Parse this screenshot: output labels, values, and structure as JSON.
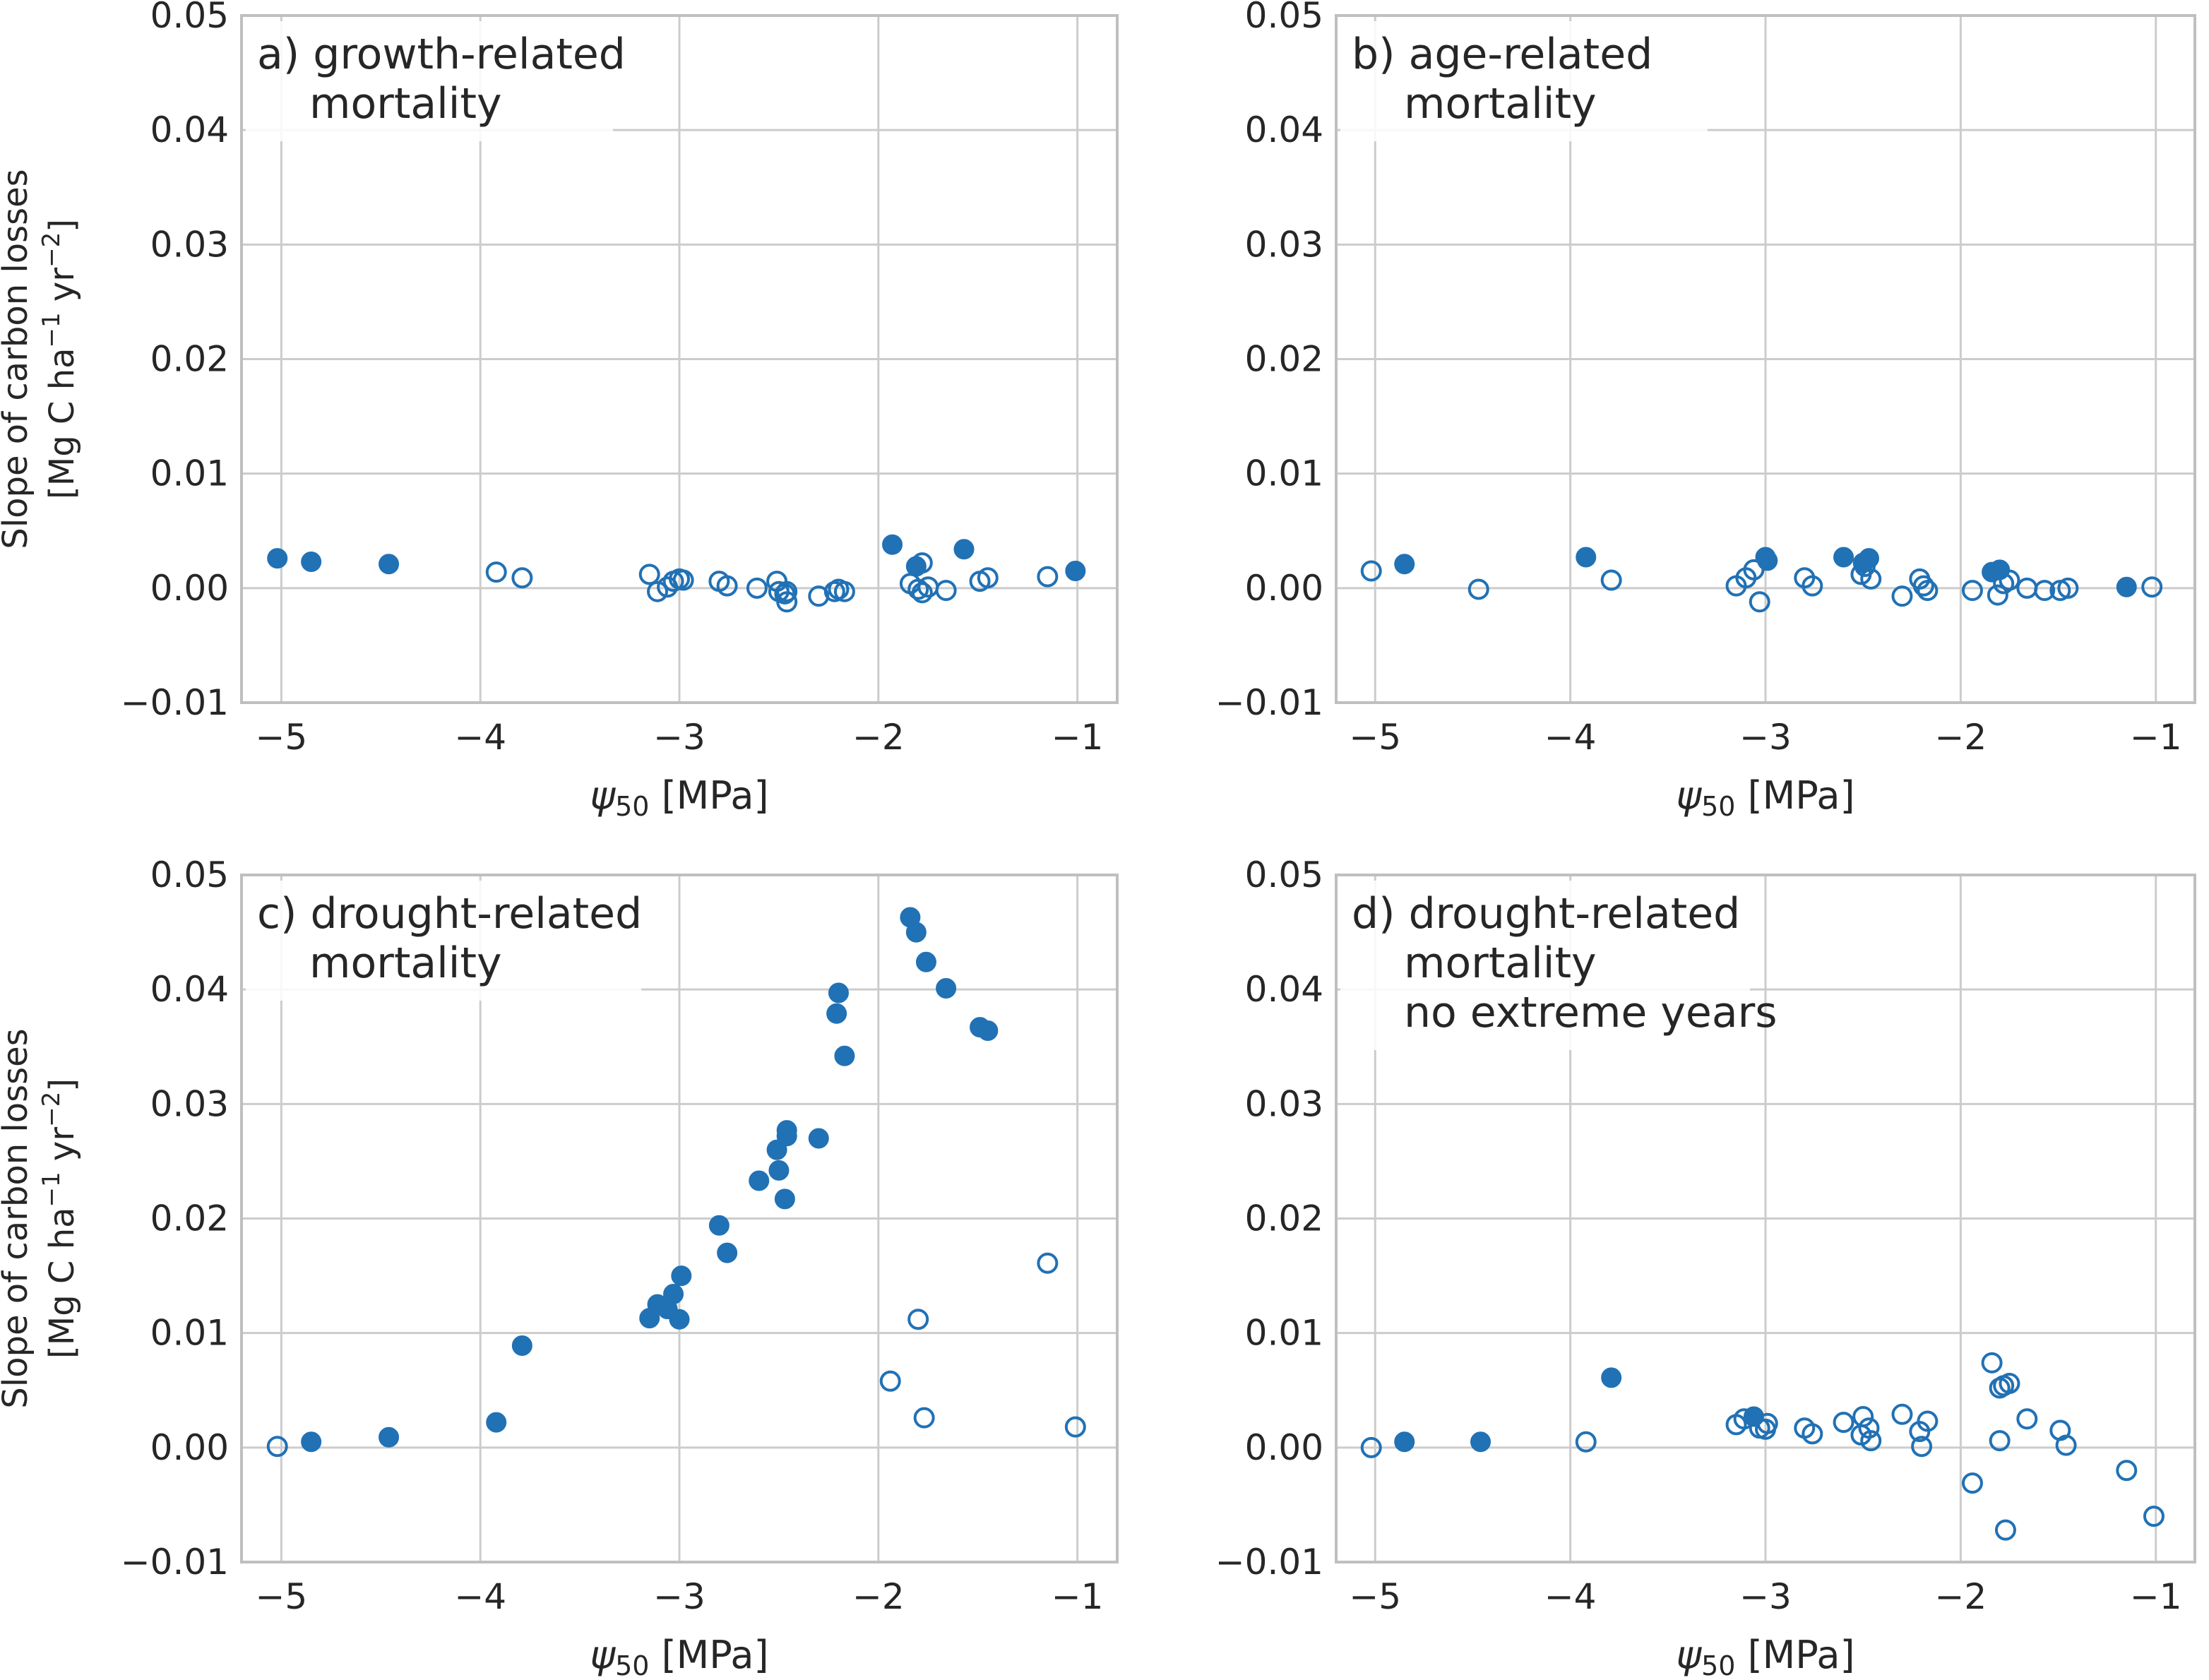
{
  "style": {
    "marker_color": "#2171b5",
    "grid_color": "#cccccc",
    "frame_color": "#bfbfbf",
    "text_color": "#262626"
  },
  "chart_data": [
    {
      "type": "scatter",
      "panel": "a",
      "label_lines": [
        "a) growth-related",
        "mortality"
      ],
      "xlabel": "ψ50 [MPa]",
      "ylabel_lines": [
        "Slope of carbon losses",
        "[Mg C ha−1 yr−2]"
      ],
      "xlim": [
        -5.2,
        -0.8
      ],
      "ylim": [
        -0.01,
        0.05
      ],
      "xticks": [
        -5,
        -4,
        -3,
        -2,
        -1
      ],
      "xtick_labels": [
        "−5",
        "−4",
        "−3",
        "−2",
        "−1"
      ],
      "yticks": [
        -0.01,
        0.0,
        0.01,
        0.02,
        0.03,
        0.04,
        0.05
      ],
      "ytick_labels": [
        "−0.01",
        "0.00",
        "0.01",
        "0.02",
        "0.03",
        "0.04",
        "0.05"
      ],
      "grid": true,
      "series": [
        {
          "filled": true,
          "points": [
            [
              -5.02,
              0.0026
            ],
            [
              -4.85,
              0.0023
            ],
            [
              -4.46,
              0.0021
            ],
            [
              -1.93,
              0.0038
            ],
            [
              -1.81,
              0.0019
            ],
            [
              -1.57,
              0.0034
            ],
            [
              -1.01,
              0.0015
            ]
          ]
        },
        {
          "filled": false,
          "points": [
            [
              -3.92,
              0.0014
            ],
            [
              -3.79,
              0.0009
            ],
            [
              -3.15,
              0.0012
            ],
            [
              -3.11,
              -0.0003
            ],
            [
              -3.06,
              0.0001
            ],
            [
              -3.03,
              0.0006
            ],
            [
              -3.0,
              0.0008
            ],
            [
              -2.98,
              0.0007
            ],
            [
              -2.8,
              0.0006
            ],
            [
              -2.76,
              0.0002
            ],
            [
              -2.61,
              0.0
            ],
            [
              -2.51,
              0.0006
            ],
            [
              -2.5,
              -0.0003
            ],
            [
              -2.47,
              -0.0005
            ],
            [
              -2.46,
              -0.0003
            ],
            [
              -2.46,
              -0.0012
            ],
            [
              -2.3,
              -0.0007
            ],
            [
              -2.22,
              -0.0003
            ],
            [
              -2.2,
              -0.0001
            ],
            [
              -2.17,
              -0.0003
            ],
            [
              -1.84,
              0.0004
            ],
            [
              -1.8,
              -0.0001
            ],
            [
              -1.78,
              0.0022
            ],
            [
              -1.78,
              -0.0004
            ],
            [
              -1.75,
              0.0001
            ],
            [
              -1.66,
              -0.0002
            ],
            [
              -1.49,
              0.0006
            ],
            [
              -1.45,
              0.0009
            ],
            [
              -1.15,
              0.001
            ]
          ]
        }
      ]
    },
    {
      "type": "scatter",
      "panel": "b",
      "label_lines": [
        "b) age-related",
        "mortality"
      ],
      "xlabel": "ψ50 [MPa]",
      "ylabel_lines": [],
      "xlim": [
        -5.2,
        -0.8
      ],
      "ylim": [
        -0.01,
        0.05
      ],
      "xticks": [
        -5,
        -4,
        -3,
        -2,
        -1
      ],
      "xtick_labels": [
        "−5",
        "−4",
        "−3",
        "−2",
        "−1"
      ],
      "yticks": [
        -0.01,
        0.0,
        0.01,
        0.02,
        0.03,
        0.04,
        0.05
      ],
      "ytick_labels": [
        "−0.01",
        "0.00",
        "0.01",
        "0.02",
        "0.03",
        "0.04",
        "0.05"
      ],
      "grid": true,
      "series": [
        {
          "filled": true,
          "points": [
            [
              -4.85,
              0.0021
            ],
            [
              -3.92,
              0.0027
            ],
            [
              -3.0,
              0.0027
            ],
            [
              -2.99,
              0.0024
            ],
            [
              -2.6,
              0.0027
            ],
            [
              -2.5,
              0.0022
            ],
            [
              -2.47,
              0.0026
            ],
            [
              -1.84,
              0.0014
            ],
            [
              -1.8,
              0.0016
            ],
            [
              -1.15,
              0.0001
            ]
          ]
        },
        {
          "filled": false,
          "points": [
            [
              -5.02,
              0.0015
            ],
            [
              -4.47,
              -0.0001
            ],
            [
              -3.79,
              0.0007
            ],
            [
              -3.15,
              0.0002
            ],
            [
              -3.1,
              0.0009
            ],
            [
              -3.06,
              0.0016
            ],
            [
              -3.03,
              -0.0012
            ],
            [
              -2.8,
              0.0009
            ],
            [
              -2.76,
              0.0002
            ],
            [
              -2.51,
              0.0012
            ],
            [
              -2.49,
              0.0019
            ],
            [
              -2.46,
              0.0008
            ],
            [
              -2.3,
              -0.0007
            ],
            [
              -2.21,
              0.0008
            ],
            [
              -2.19,
              0.0002
            ],
            [
              -2.17,
              -0.0002
            ],
            [
              -1.94,
              -0.0002
            ],
            [
              -1.81,
              -0.0006
            ],
            [
              -1.78,
              0.0004
            ],
            [
              -1.75,
              0.0007
            ],
            [
              -1.66,
              0.0
            ],
            [
              -1.57,
              -0.0002
            ],
            [
              -1.49,
              -0.0002
            ],
            [
              -1.45,
              0.0
            ],
            [
              -1.02,
              0.0001
            ]
          ]
        }
      ]
    },
    {
      "type": "scatter",
      "panel": "c",
      "label_lines": [
        "c) drought-related",
        "mortality"
      ],
      "xlabel": "ψ50 [MPa]",
      "ylabel_lines": [
        "Slope of carbon losses",
        "[Mg C ha−1 yr−2]"
      ],
      "xlim": [
        -5.2,
        -0.8
      ],
      "ylim": [
        -0.01,
        0.05
      ],
      "xticks": [
        -5,
        -4,
        -3,
        -2,
        -1
      ],
      "xtick_labels": [
        "−5",
        "−4",
        "−3",
        "−2",
        "−1"
      ],
      "yticks": [
        -0.01,
        0.0,
        0.01,
        0.02,
        0.03,
        0.04,
        0.05
      ],
      "ytick_labels": [
        "−0.01",
        "0.00",
        "0.01",
        "0.02",
        "0.03",
        "0.04",
        "0.05"
      ],
      "grid": true,
      "series": [
        {
          "filled": true,
          "points": [
            [
              -4.85,
              0.0005
            ],
            [
              -4.46,
              0.0009
            ],
            [
              -3.92,
              0.0022
            ],
            [
              -3.79,
              0.0089
            ],
            [
              -3.15,
              0.0113
            ],
            [
              -3.11,
              0.0125
            ],
            [
              -3.06,
              0.0121
            ],
            [
              -3.03,
              0.0134
            ],
            [
              -3.0,
              0.0112
            ],
            [
              -2.99,
              0.015
            ],
            [
              -2.8,
              0.0194
            ],
            [
              -2.76,
              0.017
            ],
            [
              -2.6,
              0.0233
            ],
            [
              -2.51,
              0.026
            ],
            [
              -2.5,
              0.0242
            ],
            [
              -2.47,
              0.0217
            ],
            [
              -2.46,
              0.0272
            ],
            [
              -2.46,
              0.0277
            ],
            [
              -2.3,
              0.027
            ],
            [
              -2.21,
              0.0379
            ],
            [
              -2.2,
              0.0397
            ],
            [
              -2.17,
              0.0342
            ],
            [
              -1.84,
              0.0463
            ],
            [
              -1.81,
              0.045
            ],
            [
              -1.76,
              0.0424
            ],
            [
              -1.66,
              0.0401
            ],
            [
              -1.49,
              0.0367
            ],
            [
              -1.45,
              0.0364
            ]
          ]
        },
        {
          "filled": false,
          "points": [
            [
              -5.02,
              0.0001
            ],
            [
              -1.94,
              0.0058
            ],
            [
              -1.8,
              0.0112
            ],
            [
              -1.77,
              0.0026
            ],
            [
              -1.15,
              0.0161
            ],
            [
              -1.01,
              0.0018
            ]
          ]
        }
      ]
    },
    {
      "type": "scatter",
      "panel": "d",
      "label_lines": [
        "d) drought-related",
        "mortality",
        "no extreme years"
      ],
      "xlabel": "ψ50 [MPa]",
      "ylabel_lines": [],
      "xlim": [
        -5.2,
        -0.8
      ],
      "ylim": [
        -0.01,
        0.05
      ],
      "xticks": [
        -5,
        -4,
        -3,
        -2,
        -1
      ],
      "xtick_labels": [
        "−5",
        "−4",
        "−3",
        "−2",
        "−1"
      ],
      "yticks": [
        -0.01,
        0.0,
        0.01,
        0.02,
        0.03,
        0.04,
        0.05
      ],
      "ytick_labels": [
        "−0.01",
        "0.00",
        "0.01",
        "0.02",
        "0.03",
        "0.04",
        "0.05"
      ],
      "grid": true,
      "series": [
        {
          "filled": true,
          "points": [
            [
              -4.85,
              0.0005
            ],
            [
              -4.46,
              0.0005
            ],
            [
              -3.79,
              0.0061
            ],
            [
              -3.06,
              0.0027
            ]
          ]
        },
        {
          "filled": false,
          "points": [
            [
              -5.02,
              0.0
            ],
            [
              -3.92,
              0.0005
            ],
            [
              -3.15,
              0.002
            ],
            [
              -3.11,
              0.0025
            ],
            [
              -3.03,
              0.0017
            ],
            [
              -3.0,
              0.0016
            ],
            [
              -2.99,
              0.0021
            ],
            [
              -2.8,
              0.0017
            ],
            [
              -2.76,
              0.0012
            ],
            [
              -2.6,
              0.0022
            ],
            [
              -2.51,
              0.0011
            ],
            [
              -2.5,
              0.0027
            ],
            [
              -2.47,
              0.0017
            ],
            [
              -2.46,
              0.0006
            ],
            [
              -2.3,
              0.0029
            ],
            [
              -2.21,
              0.0014
            ],
            [
              -2.2,
              0.0001
            ],
            [
              -2.17,
              0.0023
            ],
            [
              -1.94,
              -0.0031
            ],
            [
              -1.84,
              0.0074
            ],
            [
              -1.8,
              0.0006
            ],
            [
              -1.8,
              0.0052
            ],
            [
              -1.78,
              0.0054
            ],
            [
              -1.77,
              -0.0072
            ],
            [
              -1.75,
              0.0056
            ],
            [
              -1.66,
              0.0025
            ],
            [
              -1.49,
              0.0015
            ],
            [
              -1.46,
              0.0002
            ],
            [
              -1.15,
              -0.002
            ],
            [
              -1.01,
              -0.006
            ]
          ]
        }
      ]
    }
  ]
}
